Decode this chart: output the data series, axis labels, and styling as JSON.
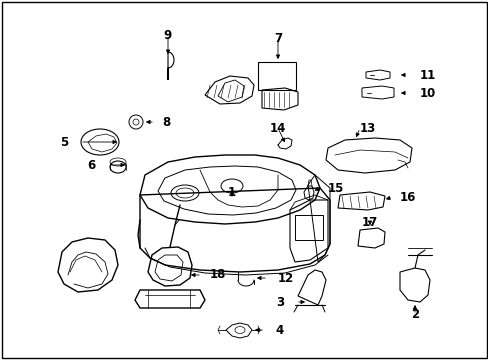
{
  "background_color": "#ffffff",
  "line_color": "#000000",
  "fig_width": 4.89,
  "fig_height": 3.6,
  "dpi": 100,
  "font_size": 8.5,
  "border_color": "#000000"
}
